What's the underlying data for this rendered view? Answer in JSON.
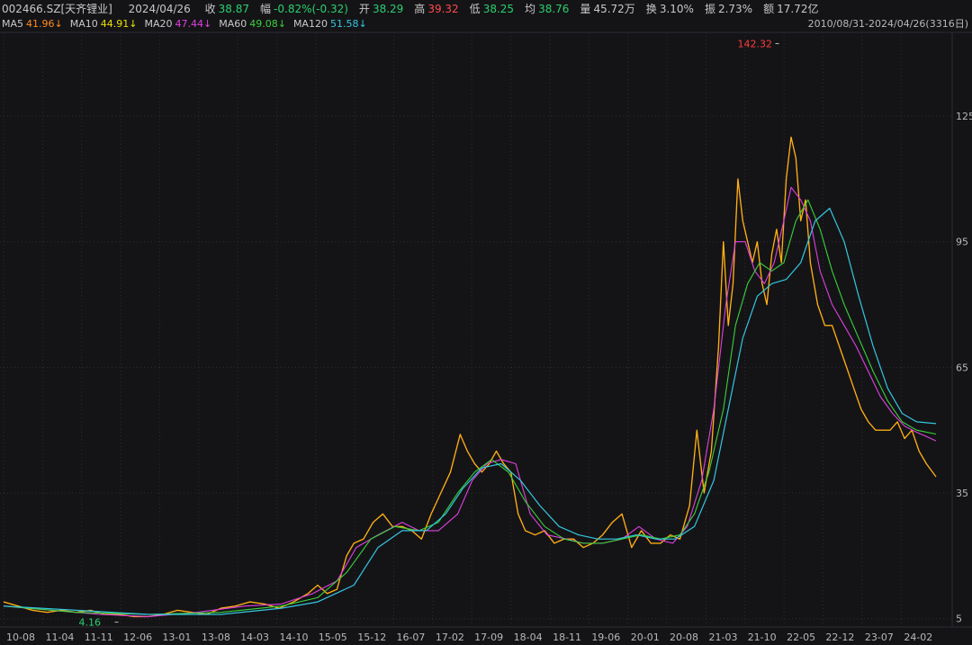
{
  "header": {
    "code": "002466.SZ[天齐锂业]",
    "date": "2024/04/26",
    "fields": [
      {
        "label": "收",
        "value": "38.87",
        "color": "#2bd06e"
      },
      {
        "label": "幅",
        "value": "-0.82%(-0.32)",
        "color": "#2bd06e"
      },
      {
        "label": "开",
        "value": "38.29",
        "color": "#2bd06e"
      },
      {
        "label": "高",
        "value": "39.32",
        "color": "#ff4a4a"
      },
      {
        "label": "低",
        "value": "38.25",
        "color": "#2bd06e"
      },
      {
        "label": "均",
        "value": "38.76",
        "color": "#2bd06e"
      },
      {
        "label": "量",
        "value": "45.72万",
        "color": "#c8c8c8"
      },
      {
        "label": "换",
        "value": "3.10%",
        "color": "#c8c8c8"
      },
      {
        "label": "振",
        "value": "2.73%",
        "color": "#c8c8c8"
      },
      {
        "label": "额",
        "value": "17.72亿",
        "color": "#c8c8c8"
      }
    ]
  },
  "ma_bar": [
    {
      "label": "MA5",
      "value": "41.96↓",
      "color": "#ff8a1f"
    },
    {
      "label": "MA10",
      "value": "44.91↓",
      "color": "#e8e000"
    },
    {
      "label": "MA20",
      "value": "47.44↓",
      "color": "#e040e0"
    },
    {
      "label": "MA60",
      "value": "49.08↓",
      "color": "#3ad13a"
    },
    {
      "label": "MA120",
      "value": "51.58↓",
      "color": "#34c6e0"
    }
  ],
  "range_text": "2010/08/31-2024/04/26(3316日)",
  "colors": {
    "background": "#141417",
    "grid": "#2c2c33",
    "axis_text": "#b8b8b8",
    "up": "#ff3b3b",
    "down": "#2bd06e",
    "ma5": "#ff8a1f",
    "ma10": "#e8e000",
    "ma20": "#e040e0",
    "ma60": "#3ad13a",
    "ma120": "#34c6e0"
  },
  "chart_data": {
    "type": "line",
    "title": "",
    "xlabel": "",
    "ylabel": "",
    "y_axis_position": "right",
    "ylim": [
      3,
      145
    ],
    "yticks": [
      5,
      35,
      65,
      95,
      125
    ],
    "grid": true,
    "x_ticks": [
      "10-08",
      "11-04",
      "11-11",
      "12-06",
      "13-01",
      "13-08",
      "14-03",
      "14-10",
      "15-05",
      "15-12",
      "16-07",
      "17-02",
      "17-09",
      "18-04",
      "18-11",
      "19-06",
      "20-01",
      "20-08",
      "21-03",
      "21-10",
      "22-05",
      "22-12",
      "23-07",
      "24-02"
    ],
    "x_tick_index": [
      0,
      1.62,
      3.23,
      4.85,
      6.46,
      8.08,
      9.69,
      11.31,
      12.92,
      14.54,
      16.15,
      17.77,
      19.38,
      21.0,
      22.62,
      24.23,
      25.85,
      27.46,
      29.08,
      30.69,
      32.31,
      33.92,
      35.54,
      37.16
    ],
    "x_end_index": 38.6,
    "series": [
      {
        "name": "close",
        "x": [
          0,
          0.6,
          1.2,
          1.8,
          2.4,
          3.0,
          3.6,
          4.2,
          4.8,
          5.4,
          6.0,
          6.6,
          7.2,
          7.8,
          8.4,
          9.0,
          9.6,
          10.2,
          10.8,
          11.4,
          12.0,
          12.6,
          13.0,
          13.4,
          13.8,
          14.2,
          14.5,
          14.9,
          15.3,
          15.7,
          16.1,
          16.5,
          16.9,
          17.3,
          17.7,
          18.1,
          18.5,
          18.9,
          19.2,
          19.5,
          19.8,
          20.1,
          20.4,
          20.7,
          21.0,
          21.3,
          21.6,
          22.0,
          22.4,
          22.8,
          23.2,
          23.6,
          24.0,
          24.4,
          24.8,
          25.2,
          25.6,
          26.0,
          26.4,
          26.8,
          27.2,
          27.6,
          28.0,
          28.4,
          28.7,
          29.0,
          29.3,
          29.6,
          29.8,
          30.0,
          30.2,
          30.4,
          30.6,
          30.8,
          31.0,
          31.2,
          31.4,
          31.6,
          31.8,
          32.0,
          32.2,
          32.4,
          32.6,
          32.8,
          33.0,
          33.2,
          33.4,
          33.7,
          34.0,
          34.3,
          34.6,
          34.9,
          35.2,
          35.5,
          35.8,
          36.1,
          36.4,
          36.7,
          37.0,
          37.3,
          37.6,
          37.9,
          38.2,
          38.6
        ],
        "values": [
          9,
          8,
          7,
          6.5,
          7,
          6.5,
          7,
          6,
          6,
          5.5,
          5.5,
          6,
          7,
          6.5,
          6,
          7.5,
          8,
          9,
          8.5,
          7.5,
          9,
          11,
          13,
          11,
          12,
          20,
          23,
          24,
          28,
          30,
          27,
          27,
          26,
          24,
          30,
          35,
          40,
          49,
          45,
          42,
          40,
          42,
          45,
          42,
          40,
          30,
          26,
          25,
          26,
          23,
          24,
          24,
          22,
          23,
          25,
          28,
          30,
          22,
          26,
          23,
          23,
          25,
          24,
          32,
          50,
          35,
          45,
          70,
          95,
          75,
          85,
          110,
          100,
          95,
          90,
          95,
          85,
          80,
          92,
          98,
          90,
          110,
          120,
          115,
          100,
          105,
          90,
          80,
          75,
          75,
          70,
          65,
          60,
          55,
          52,
          50,
          50,
          50,
          52,
          48,
          50,
          45,
          42,
          38.87
        ]
      },
      {
        "name": "MA20",
        "x": [
          0,
          2.0,
          4.0,
          6.0,
          8.0,
          10.0,
          11.5,
          12.8,
          13.8,
          14.6,
          15.5,
          16.5,
          17.2,
          18.0,
          18.8,
          19.4,
          20.0,
          20.6,
          21.2,
          21.8,
          22.5,
          23.3,
          24.0,
          24.8,
          25.6,
          26.3,
          27.0,
          27.7,
          28.3,
          28.9,
          29.4,
          29.9,
          30.3,
          30.7,
          31.1,
          31.5,
          31.9,
          32.3,
          32.6,
          33.0,
          33.4,
          33.8,
          34.3,
          34.8,
          35.3,
          35.8,
          36.3,
          36.8,
          37.3,
          37.8,
          38.2,
          38.6
        ],
        "values": [
          8,
          7,
          6,
          5.5,
          6.5,
          8,
          8.5,
          11,
          14,
          22,
          25,
          28,
          26,
          26,
          30,
          38,
          42,
          43,
          42,
          30,
          25,
          24,
          23,
          23,
          24,
          27,
          24,
          23,
          27,
          38,
          55,
          80,
          95,
          95,
          88,
          85,
          90,
          100,
          108,
          105,
          100,
          88,
          80,
          75,
          70,
          64,
          58,
          54,
          51,
          49.5,
          48.5,
          47.44
        ]
      },
      {
        "name": "MA60",
        "x": [
          0,
          3.0,
          6.0,
          9.0,
          11.5,
          13.0,
          14.2,
          15.2,
          16.2,
          17.2,
          18.0,
          18.8,
          19.5,
          20.2,
          20.9,
          21.6,
          22.4,
          23.2,
          24.0,
          24.8,
          25.6,
          26.4,
          27.2,
          28.0,
          28.6,
          29.2,
          29.8,
          30.3,
          30.8,
          31.3,
          31.8,
          32.3,
          32.8,
          33.3,
          33.8,
          34.3,
          34.8,
          35.4,
          36.0,
          36.6,
          37.2,
          37.8,
          38.6
        ],
        "values": [
          8,
          6.5,
          6,
          6.5,
          8,
          10,
          16,
          24,
          27,
          26,
          28,
          35,
          40,
          43,
          40,
          33,
          27,
          24,
          23,
          23,
          24,
          25,
          24,
          25,
          30,
          40,
          55,
          75,
          85,
          90,
          88,
          90,
          100,
          105,
          98,
          88,
          80,
          72,
          64,
          57,
          52,
          50,
          49.08
        ]
      },
      {
        "name": "MA120",
        "x": [
          0,
          3.0,
          6.0,
          9.0,
          11.5,
          13.0,
          14.5,
          15.5,
          16.5,
          17.5,
          18.3,
          19.0,
          19.8,
          20.6,
          21.4,
          22.2,
          23.0,
          23.8,
          24.6,
          25.4,
          26.2,
          27.0,
          27.8,
          28.6,
          29.4,
          30.0,
          30.6,
          31.2,
          31.8,
          32.4,
          33.0,
          33.6,
          34.2,
          34.8,
          35.4,
          36.0,
          36.6,
          37.2,
          37.8,
          38.6
        ],
        "values": [
          8,
          7,
          6,
          6,
          7.5,
          9,
          13,
          22,
          26,
          26,
          30,
          36,
          41,
          42,
          38,
          32,
          27,
          25,
          24,
          24,
          25,
          24,
          24,
          27,
          38,
          55,
          72,
          82,
          85,
          86,
          90,
          100,
          103,
          95,
          82,
          70,
          60,
          54,
          52,
          51.58
        ]
      }
    ],
    "annotations": [
      {
        "text": "142.32",
        "x": 32.1,
        "y": 142.32,
        "kind": "high"
      },
      {
        "text": "4.16",
        "x": 4.6,
        "y": 4.16,
        "kind": "low"
      }
    ]
  }
}
